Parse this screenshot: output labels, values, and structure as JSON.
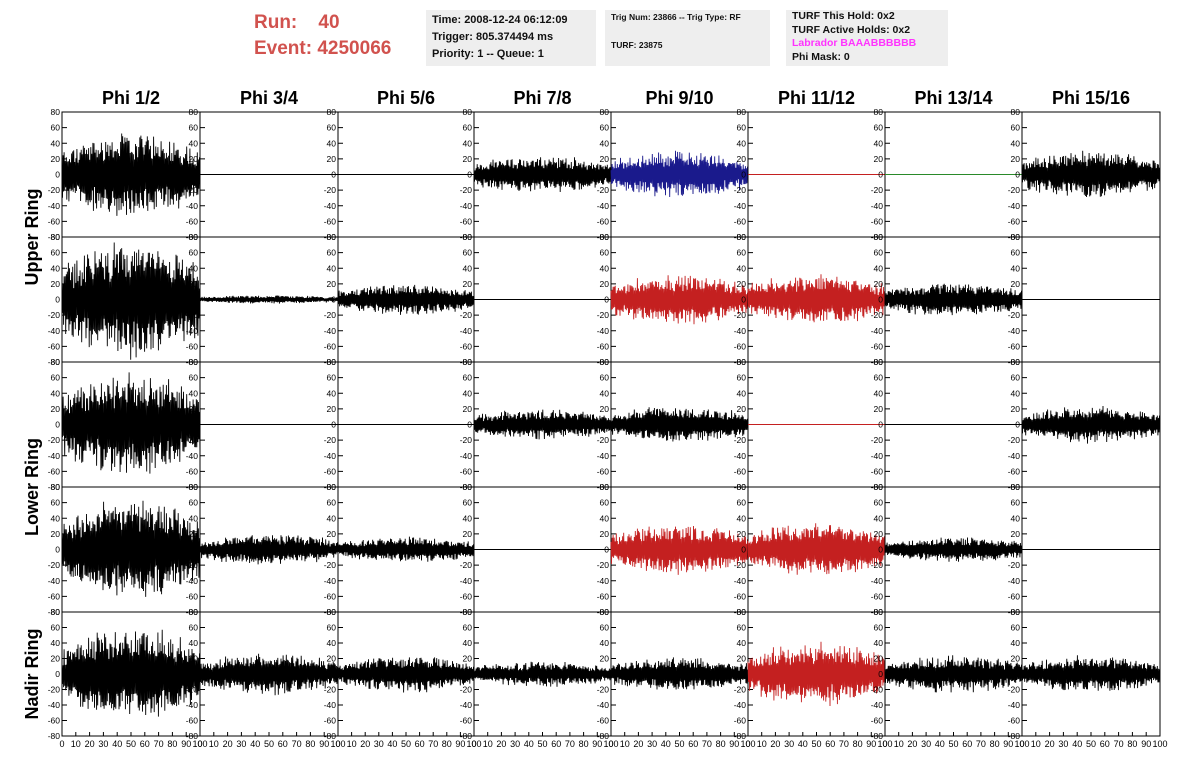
{
  "header": {
    "run_label": "Run:",
    "run_value": "40",
    "event_label": "Event:",
    "event_value": "4250066"
  },
  "info_box_1": {
    "time": "Time: 2008-12-24 06:12:09",
    "trigger": "Trigger: 805.374494 ms",
    "priority": "Priority: 1 -- Queue: 1"
  },
  "info_box_2": {
    "trig": "Trig Num: 23866 -- Trig Type: RF",
    "turf": "TURF: 23875"
  },
  "info_box_3": {
    "hold": "TURF This Hold: 0x2",
    "active": "TURF Active Holds: 0x2",
    "labrador": "Labrador BAAABBBBBB",
    "phimask": "Phi Mask: 0"
  },
  "colors": {
    "header_red": "#d1524e",
    "labrador_magenta": "#ff33ff",
    "trace_black": "#000000",
    "trace_blue": "#1a1a8c",
    "trace_red": "#c42020",
    "flat_red": "#c42020",
    "flat_green": "#2a8a2a"
  },
  "chart_data": {
    "type": "line",
    "columns": [
      "Phi 1/2",
      "Phi 3/4",
      "Phi 5/6",
      "Phi 7/8",
      "Phi 9/10",
      "Phi 11/12",
      "Phi 13/14",
      "Phi 15/16"
    ],
    "rows": [
      "Upper Ring",
      "Lower Ring",
      "Nadir Ring"
    ],
    "row_spans": [
      2,
      2,
      1
    ],
    "x_range": [
      0,
      100
    ],
    "x_ticks": [
      0,
      10,
      20,
      30,
      40,
      50,
      60,
      70,
      80,
      90,
      100
    ],
    "y_range": [
      -80,
      80
    ],
    "y_ticks": [
      -80,
      -60,
      -40,
      -20,
      0,
      20,
      40,
      60,
      80
    ],
    "samples_per_trace": 260,
    "note_amplitude_units": "approximate peak amplitude in y-axis units",
    "panels": [
      [
        {
          "amp": 50,
          "color": "black"
        },
        {
          "amp": 0,
          "color": "black"
        },
        {
          "amp": 0,
          "color": "black"
        },
        {
          "amp": 22,
          "color": "black"
        },
        {
          "amp": 28,
          "color": "blue"
        },
        {
          "amp": 0,
          "color": "flat_red"
        },
        {
          "amp": 0,
          "color": "flat_green"
        },
        {
          "amp": 28,
          "color": "black"
        }
      ],
      [
        {
          "amp": 68,
          "color": "black"
        },
        {
          "amp": 5,
          "color": "black"
        },
        {
          "amp": 18,
          "color": "black"
        },
        {
          "amp": 0,
          "color": "black"
        },
        {
          "amp": 30,
          "color": "red"
        },
        {
          "amp": 30,
          "color": "red"
        },
        {
          "amp": 20,
          "color": "black"
        },
        {
          "amp": 0,
          "color": "black"
        }
      ],
      [
        {
          "amp": 62,
          "color": "black"
        },
        {
          "amp": 0,
          "color": "black"
        },
        {
          "amp": 0,
          "color": "black"
        },
        {
          "amp": 18,
          "color": "black"
        },
        {
          "amp": 22,
          "color": "black"
        },
        {
          "amp": 0,
          "color": "flat_red"
        },
        {
          "amp": 0,
          "color": "black"
        },
        {
          "amp": 22,
          "color": "black"
        }
      ],
      [
        {
          "amp": 58,
          "color": "black"
        },
        {
          "amp": 18,
          "color": "black"
        },
        {
          "amp": 15,
          "color": "black"
        },
        {
          "amp": 0,
          "color": "black"
        },
        {
          "amp": 30,
          "color": "red"
        },
        {
          "amp": 32,
          "color": "red"
        },
        {
          "amp": 15,
          "color": "black"
        },
        {
          "amp": 0,
          "color": "black"
        }
      ],
      [
        {
          "amp": 55,
          "color": "black"
        },
        {
          "amp": 25,
          "color": "black"
        },
        {
          "amp": 22,
          "color": "black"
        },
        {
          "amp": 15,
          "color": "black"
        },
        {
          "amp": 20,
          "color": "black"
        },
        {
          "amp": 38,
          "color": "red"
        },
        {
          "amp": 22,
          "color": "black"
        },
        {
          "amp": 22,
          "color": "black"
        }
      ]
    ]
  }
}
